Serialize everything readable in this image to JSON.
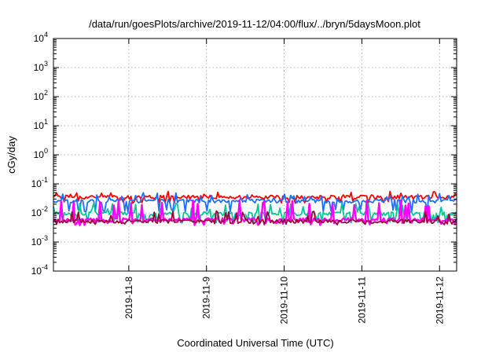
{
  "chart_data": {
    "type": "line",
    "title": "/data/run/goesPlots/archive/2019-11-12/04:00/flux/../bryn/5daysMoon.plot",
    "xlabel": "Coordinated Universal Time (UTC)",
    "ylabel": "cGy/day",
    "x_ticks": [
      "2019-11-8",
      "2019-11-9",
      "2019-11-10",
      "2019-11-11",
      "2019-11-12"
    ],
    "x_range_days": [
      0,
      5.19
    ],
    "x_tick_positions_days": [
      0.97,
      1.97,
      2.97,
      3.97,
      4.97
    ],
    "yscale": "log",
    "ylim": [
      0.0001,
      10000
    ],
    "y_ticks": [
      {
        "base": "10",
        "exp": "-4",
        "value": 0.0001
      },
      {
        "base": "10",
        "exp": "-3",
        "value": 0.001
      },
      {
        "base": "10",
        "exp": "-2",
        "value": 0.01
      },
      {
        "base": "10",
        "exp": "-1",
        "value": 0.1
      },
      {
        "base": "10",
        "exp": "0",
        "value": 1
      },
      {
        "base": "10",
        "exp": "1",
        "value": 10
      },
      {
        "base": "10",
        "exp": "2",
        "value": 100
      },
      {
        "base": "10",
        "exp": "3",
        "value": 1000
      },
      {
        "base": "10",
        "exp": "4",
        "value": 10000
      }
    ],
    "grid": true,
    "series": [
      {
        "color": "#ff0000",
        "base": 0.035,
        "spike": 0.055,
        "dip": 0.024,
        "seed": 1
      },
      {
        "color": "#1f6fff",
        "base": 0.026,
        "spike": 0.05,
        "dip": 0.012,
        "seed": 2
      },
      {
        "color": "#00c896",
        "base": 0.0095,
        "spike": 0.022,
        "dip": 0.005,
        "seed": 3
      },
      {
        "color": "#ff00ff",
        "base": 0.0058,
        "spike": 0.028,
        "dip": 0.0042,
        "seed": 4
      },
      {
        "color": "#a0003c",
        "base": 0.0052,
        "spike": 0.012,
        "dip": 0.0044,
        "seed": 5
      }
    ]
  }
}
